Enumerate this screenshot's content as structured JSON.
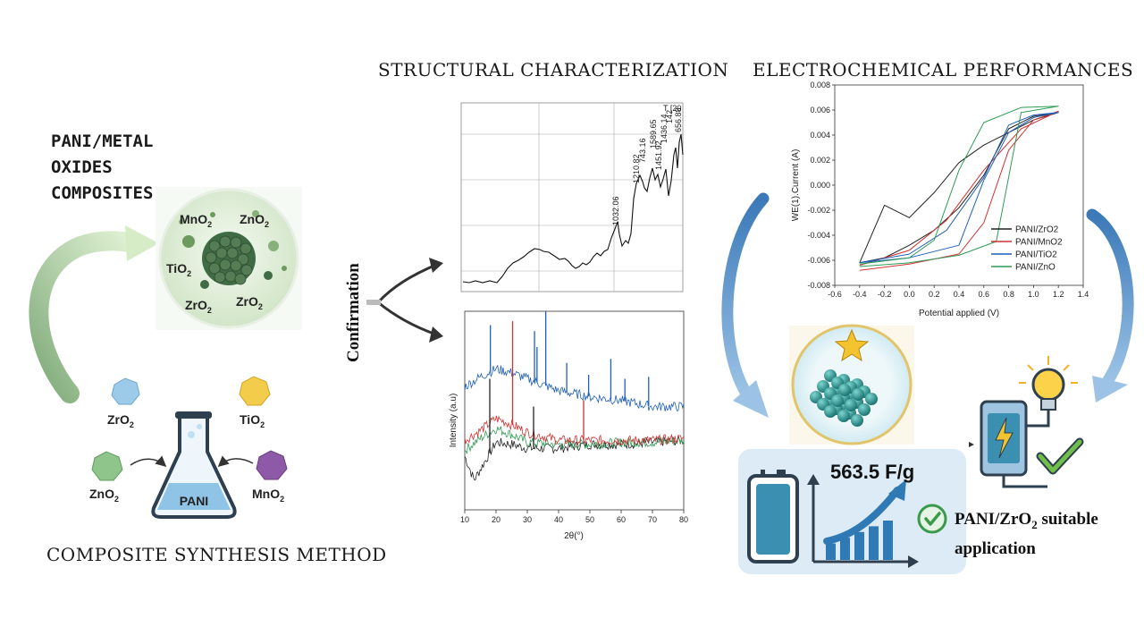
{
  "sections": {
    "structural": "STRUCTURAL CHARACTERIZATION",
    "electrochemical": "ELECTROCHEMICAL PERFORMANCES",
    "composites_lines": [
      "PANI/METAL",
      "OXIDES",
      "COMPOSITES"
    ],
    "synthesis": "COMPOSITE SYNTHESIS METHOD",
    "confirmation": "Confirmation"
  },
  "composite_oxides": [
    {
      "base": "MnO",
      "sub": "2"
    },
    {
      "base": "ZnO",
      "sub": "2"
    },
    {
      "base": "TiO",
      "sub": "2"
    },
    {
      "base": "ZrO",
      "sub": "2"
    },
    {
      "base": "ZrO",
      "sub": "2"
    }
  ],
  "synthesis_oxides": [
    {
      "base": "ZrO",
      "sub": "2",
      "color": "#9ccbea"
    },
    {
      "base": "TiO",
      "sub": "2",
      "color": "#f2cc4a"
    },
    {
      "base": "ZnO",
      "sub": "2",
      "color": "#8fc58a"
    },
    {
      "base": "MnO",
      "sub": "2",
      "color": "#8e5aa8"
    }
  ],
  "flask_label": "PANI",
  "ftir": {
    "peak_labels": [
      "1032.06",
      "1210.82",
      "743.16",
      "1451.92",
      "1589.65",
      "1436.14",
      "T [20",
      "142",
      "656.88"
    ]
  },
  "chart_data": [
    {
      "type": "line",
      "title": "",
      "xlabel": "2θ(°)",
      "ylabel": "Intensity (a.u)",
      "xlim": [
        10,
        80
      ],
      "x_ticks": [
        "10",
        "20",
        "30",
        "40",
        "50",
        "60",
        "70",
        "80"
      ],
      "series": [
        {
          "color": "#1f5fb8",
          "values": [
            [
              10,
              0.62
            ],
            [
              15,
              0.67
            ],
            [
              20,
              0.71
            ],
            [
              25,
              0.69
            ],
            [
              30,
              0.66
            ],
            [
              40,
              0.6
            ],
            [
              50,
              0.57
            ],
            [
              60,
              0.55
            ],
            [
              70,
              0.52
            ],
            [
              80,
              0.52
            ]
          ]
        },
        {
          "color": "#d33030",
          "values": [
            [
              10,
              0.35
            ],
            [
              15,
              0.4
            ],
            [
              20,
              0.46
            ],
            [
              25,
              0.43
            ],
            [
              30,
              0.39
            ],
            [
              40,
              0.35
            ],
            [
              50,
              0.35
            ],
            [
              60,
              0.35
            ],
            [
              70,
              0.35
            ],
            [
              80,
              0.36
            ]
          ]
        },
        {
          "color": "#2e9c55",
          "values": [
            [
              10,
              0.3
            ],
            [
              15,
              0.36
            ],
            [
              20,
              0.41
            ],
            [
              25,
              0.38
            ],
            [
              30,
              0.34
            ],
            [
              40,
              0.33
            ],
            [
              50,
              0.33
            ],
            [
              60,
              0.34
            ],
            [
              70,
              0.34
            ],
            [
              80,
              0.35
            ]
          ]
        },
        {
          "color": "#222222",
          "values": [
            [
              10,
              0.27
            ],
            [
              13,
              0.15
            ],
            [
              20,
              0.34
            ],
            [
              25,
              0.33
            ],
            [
              30,
              0.31
            ],
            [
              40,
              0.31
            ],
            [
              50,
              0.33
            ],
            [
              60,
              0.33
            ],
            [
              70,
              0.34
            ],
            [
              80,
              0.35
            ]
          ]
        }
      ],
      "peaks": [
        {
          "series": 0,
          "x": 18.2,
          "y": 0.93
        },
        {
          "series": 0,
          "x": 32.3,
          "y": 0.9
        },
        {
          "series": 0,
          "x": 33.1,
          "y": 0.82
        },
        {
          "series": 0,
          "x": 35.9,
          "y": 1.0
        },
        {
          "series": 0,
          "x": 42.6,
          "y": 0.74
        },
        {
          "series": 0,
          "x": 49.6,
          "y": 0.68
        },
        {
          "series": 0,
          "x": 56.7,
          "y": 0.76
        },
        {
          "series": 0,
          "x": 61.2,
          "y": 0.66
        },
        {
          "series": 0,
          "x": 68.8,
          "y": 0.67
        },
        {
          "series": 1,
          "x": 25.3,
          "y": 0.95
        },
        {
          "series": 1,
          "x": 48.0,
          "y": 0.55
        },
        {
          "series": 3,
          "x": 18.0,
          "y": 0.66
        },
        {
          "series": 3,
          "x": 32.0,
          "y": 0.52
        }
      ]
    },
    {
      "type": "line",
      "title": "",
      "xlabel": "Potential applied (V)",
      "ylabel": "WE(1).Current (A)",
      "xlim": [
        -0.6,
        1.4
      ],
      "ylim": [
        -0.008,
        0.008
      ],
      "x_ticks": [
        "-0.6",
        "-0.4",
        "-0.2",
        "0.0",
        "0.2",
        "0.4",
        "0.6",
        "0.8",
        "1.0",
        "1.2",
        "1.4"
      ],
      "y_ticks": [
        "-0.008",
        "-0.006",
        "-0.004",
        "-0.002",
        "0.000",
        "0.002",
        "0.004",
        "0.006",
        "0.008"
      ],
      "legend_position": "right",
      "series": [
        {
          "name": "PANI/ZrO2",
          "color": "#222222",
          "values": [
            [
              -0.4,
              -0.0062
            ],
            [
              -0.2,
              -0.0058
            ],
            [
              0.0,
              -0.0048
            ],
            [
              0.2,
              -0.0036
            ],
            [
              0.4,
              -0.0018
            ],
            [
              0.6,
              0.0008
            ],
            [
              0.8,
              0.0045
            ],
            [
              1.0,
              0.0055
            ],
            [
              1.2,
              0.0058
            ],
            [
              1.0,
              0.0052
            ],
            [
              0.8,
              0.0042
            ],
            [
              0.6,
              0.0032
            ],
            [
              0.4,
              0.0018
            ],
            [
              0.2,
              -0.0006
            ],
            [
              0.0,
              -0.0026
            ],
            [
              -0.2,
              -0.0016
            ],
            [
              -0.4,
              -0.0062
            ]
          ]
        },
        {
          "name": "PANI/MnO2",
          "color": "#d33030",
          "values": [
            [
              -0.4,
              -0.0068
            ],
            [
              0.0,
              -0.0063
            ],
            [
              0.4,
              -0.0055
            ],
            [
              0.6,
              -0.003
            ],
            [
              0.8,
              0.0028
            ],
            [
              1.0,
              0.0052
            ],
            [
              1.2,
              0.0059
            ],
            [
              0.9,
              0.0045
            ],
            [
              0.6,
              0.0012
            ],
            [
              0.3,
              -0.0028
            ],
            [
              0.0,
              -0.0052
            ],
            [
              -0.4,
              -0.0064
            ]
          ]
        },
        {
          "name": "PANI/TiO2",
          "color": "#1f5fb8",
          "values": [
            [
              -0.4,
              -0.0062
            ],
            [
              0.0,
              -0.0058
            ],
            [
              0.4,
              -0.0048
            ],
            [
              0.6,
              0.0004
            ],
            [
              0.8,
              0.0042
            ],
            [
              1.0,
              0.0054
            ],
            [
              1.2,
              0.0058
            ],
            [
              1.0,
              0.0056
            ],
            [
              0.8,
              0.0048
            ],
            [
              0.6,
              0.0006
            ],
            [
              0.3,
              -0.0036
            ],
            [
              0.0,
              -0.0055
            ],
            [
              -0.4,
              -0.0062
            ]
          ]
        },
        {
          "name": "PANI/ZnO",
          "color": "#2e9c55",
          "values": [
            [
              -0.4,
              -0.0065
            ],
            [
              0.0,
              -0.0062
            ],
            [
              0.4,
              -0.0056
            ],
            [
              0.7,
              -0.0045
            ],
            [
              0.9,
              0.0058
            ],
            [
              1.2,
              0.0063
            ],
            [
              0.9,
              0.0062
            ],
            [
              0.6,
              0.005
            ],
            [
              0.4,
              0.0012
            ],
            [
              0.2,
              -0.0044
            ],
            [
              0.0,
              -0.0058
            ],
            [
              -0.4,
              -0.0063
            ]
          ]
        }
      ]
    },
    {
      "type": "bar",
      "title": "",
      "series": [
        {
          "values": [
            1,
            2,
            3,
            4,
            5
          ]
        }
      ]
    }
  ],
  "performance": {
    "capacitance": "563.5 F/g",
    "application_line1_pre": "PANI/ZrO",
    "application_line1_sub": "2",
    "application_line1_post": " suitable",
    "application_line2": "application"
  }
}
